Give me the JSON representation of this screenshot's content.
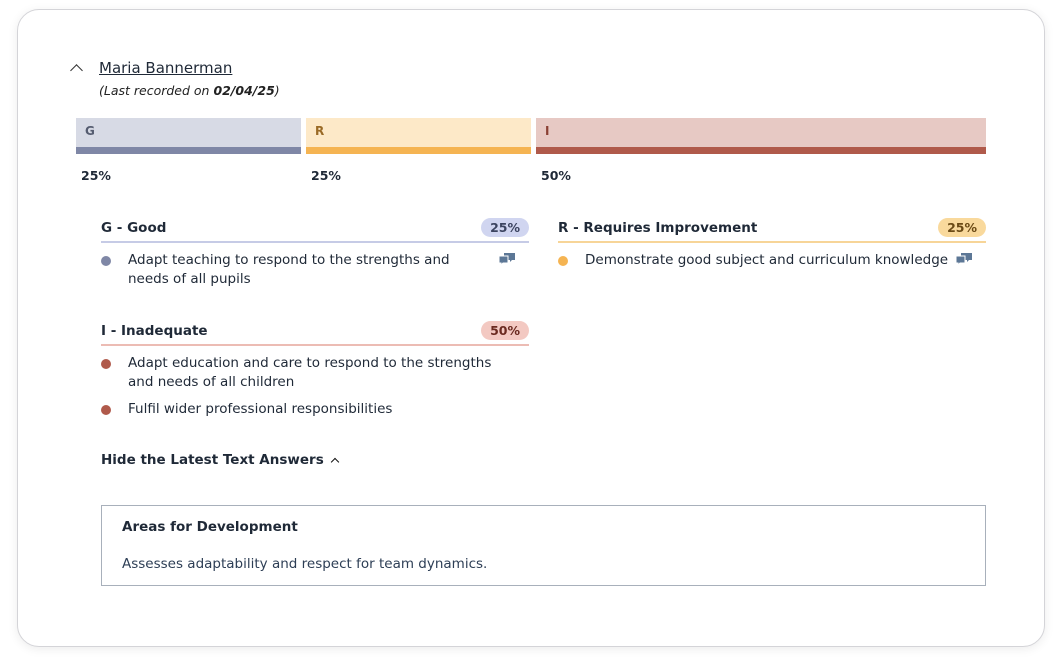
{
  "person": {
    "name": "Maria Bannerman",
    "recorded_prefix": "(Last recorded on ",
    "recorded_date": "02/04/25",
    "recorded_suffix": ")"
  },
  "colors": {
    "G": "#7f87a6",
    "R": "#f5b452",
    "I": "#b05a4b"
  },
  "distribution": [
    {
      "code": "G",
      "percent": 25,
      "percent_label": "25%"
    },
    {
      "code": "R",
      "percent": 25,
      "percent_label": "25%"
    },
    {
      "code": "I",
      "percent": 50,
      "percent_label": "50%"
    }
  ],
  "groups": {
    "good": {
      "title": "G - Good",
      "pill": "25%",
      "items": [
        "Adapt teaching to respond to the strengths and needs of all pupils"
      ]
    },
    "requires": {
      "title": "R - Requires Improvement",
      "pill": "25%",
      "items": [
        "Demonstrate good subject and curriculum knowledge"
      ]
    },
    "inadequate": {
      "title": "I - Inadequate",
      "pill": "50%",
      "items": [
        "Adapt education and care to respond to the strengths and needs of all children",
        "Fulfil wider professional responsibilities"
      ]
    }
  },
  "toggle_label": "Hide the Latest Text Answers",
  "answers": {
    "title": "Areas for Development",
    "text": "Assesses adaptability and respect for team dynamics."
  }
}
